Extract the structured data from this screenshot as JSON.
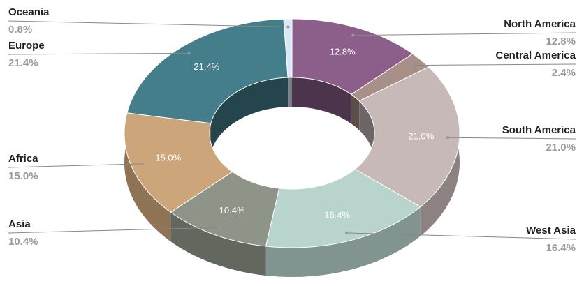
{
  "chart_data": {
    "type": "pie",
    "donut": true,
    "three_d": true,
    "categories": [
      "North America",
      "Central America",
      "South America",
      "West Asia",
      "Asia",
      "Africa",
      "Europe",
      "Oceania"
    ],
    "values": [
      12.8,
      2.4,
      21.0,
      16.4,
      10.4,
      15.0,
      21.4,
      0.8
    ],
    "value_labels": [
      "12.8%",
      "2.4%",
      "21.0%",
      "16.4%",
      "10.4%",
      "15.0%",
      "21.4%",
      "0.8%"
    ],
    "colors": [
      "#8b5f8a",
      "#a89088",
      "#c8b9b9",
      "#b8d4cc",
      "#8e9488",
      "#cca57a",
      "#447e8a",
      "#d8e8f4"
    ]
  }
}
